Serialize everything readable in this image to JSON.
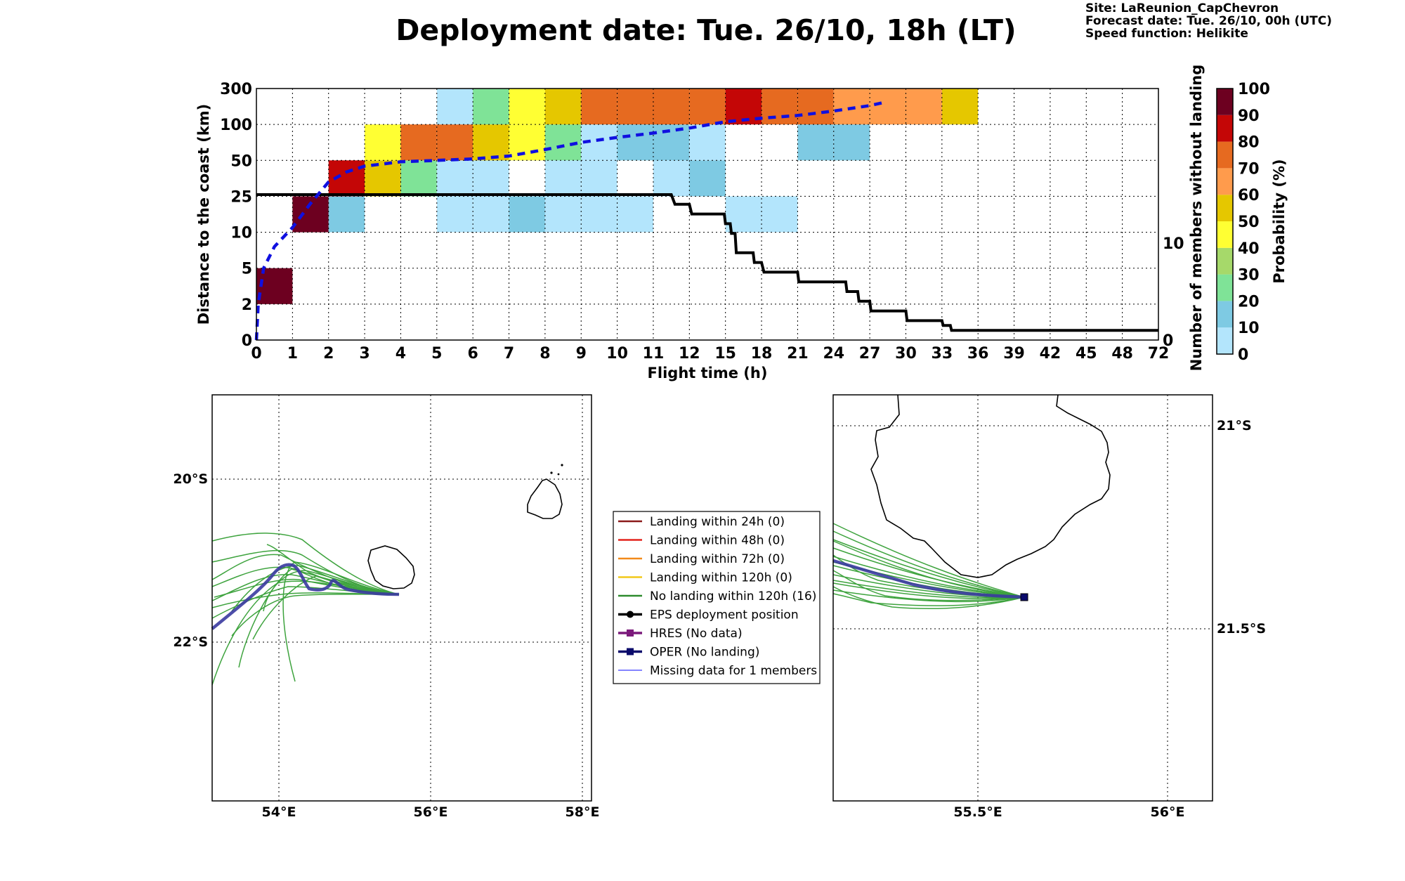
{
  "header": {
    "title": "Deployment date: Tue. 26/10, 18h (LT)",
    "site": "Site: LaReunion_CapChevron",
    "forecast": "Forecast date: Tue. 26/10, 00h (UTC)",
    "speed": "Speed function: Helikite"
  },
  "chart_data": [
    {
      "type": "heatmap",
      "xlabel": "Flight time (h)",
      "ylabel": "Distance to the coast (km)",
      "y2label": "Number of members without landing",
      "x_ticks": [
        "0",
        "1",
        "2",
        "3",
        "4",
        "5",
        "6",
        "7",
        "8",
        "9",
        "10",
        "11",
        "12",
        "15",
        "18",
        "21",
        "24",
        "27",
        "30",
        "33",
        "36",
        "39",
        "42",
        "45",
        "48",
        "72"
      ],
      "y_ticks": [
        "0",
        "2",
        "5",
        "10",
        "25",
        "50",
        "100",
        "300"
      ],
      "y2_ticks": [
        "0",
        "10"
      ],
      "colorbar": {
        "label": "Probability (%)",
        "ticks": [
          "0",
          "10",
          "20",
          "30",
          "40",
          "50",
          "60",
          "70",
          "80",
          "90",
          "100"
        ],
        "colors": [
          "#b3e5fc",
          "#7ecae3",
          "#7fe397",
          "#a6d96a",
          "#ffff33",
          "#e5c700",
          "#ff9b4c",
          "#e66a20",
          "#c40606",
          "#6d0020"
        ]
      },
      "cells": [
        {
          "x": 0,
          "y": 1,
          "v": 100
        },
        {
          "x": 1,
          "y": 3,
          "v": 100
        },
        {
          "x": 2,
          "y": 3,
          "v": 15
        },
        {
          "x": 2,
          "y": 4,
          "v": 85
        },
        {
          "x": 3,
          "y": 4,
          "v": 55
        },
        {
          "x": 3,
          "y": 5,
          "v": 45
        },
        {
          "x": 4,
          "y": 4,
          "v": 25
        },
        {
          "x": 4,
          "y": 5,
          "v": 75
        },
        {
          "x": 5,
          "y": 3,
          "v": 5
        },
        {
          "x": 5,
          "y": 4,
          "v": 5
        },
        {
          "x": 5,
          "y": 5,
          "v": 75
        },
        {
          "x": 5,
          "y": 6,
          "v": 5
        },
        {
          "x": 6,
          "y": 3,
          "v": 5
        },
        {
          "x": 6,
          "y": 4,
          "v": 5
        },
        {
          "x": 6,
          "y": 5,
          "v": 55
        },
        {
          "x": 6,
          "y": 6,
          "v": 25
        },
        {
          "x": 7,
          "y": 3,
          "v": 15
        },
        {
          "x": 7,
          "y": 5,
          "v": 45
        },
        {
          "x": 7,
          "y": 6,
          "v": 45
        },
        {
          "x": 8,
          "y": 3,
          "v": 5
        },
        {
          "x": 8,
          "y": 4,
          "v": 5
        },
        {
          "x": 8,
          "y": 5,
          "v": 25
        },
        {
          "x": 8,
          "y": 6,
          "v": 55
        },
        {
          "x": 9,
          "y": 3,
          "v": 5
        },
        {
          "x": 9,
          "y": 4,
          "v": 5
        },
        {
          "x": 9,
          "y": 5,
          "v": 5
        },
        {
          "x": 9,
          "y": 6,
          "v": 75
        },
        {
          "x": 10,
          "y": 3,
          "v": 5
        },
        {
          "x": 10,
          "y": 5,
          "v": 15
        },
        {
          "x": 10,
          "y": 6,
          "v": 75
        },
        {
          "x": 11,
          "y": 4,
          "v": 5
        },
        {
          "x": 11,
          "y": 5,
          "v": 15
        },
        {
          "x": 11,
          "y": 6,
          "v": 75
        },
        {
          "x": 12,
          "y": 4,
          "v": 15
        },
        {
          "x": 12,
          "y": 5,
          "v": 5
        },
        {
          "x": 12,
          "y": 6,
          "v": 75
        },
        {
          "x": 13,
          "y": 3,
          "v": 5
        },
        {
          "x": 13,
          "y": 6,
          "v": 85
        },
        {
          "x": 14,
          "y": 3,
          "v": 5
        },
        {
          "x": 14,
          "y": 6,
          "v": 75
        },
        {
          "x": 15,
          "y": 5,
          "v": 15
        },
        {
          "x": 15,
          "y": 6,
          "v": 75
        },
        {
          "x": 16,
          "y": 5,
          "v": 15
        },
        {
          "x": 16,
          "y": 6,
          "v": 65
        },
        {
          "x": 17,
          "y": 6,
          "v": 65
        },
        {
          "x": 18,
          "y": 6,
          "v": 65
        },
        {
          "x": 19,
          "y": 6,
          "v": 55
        }
      ],
      "members_without_landing": [
        {
          "t": 0,
          "n": 15
        },
        {
          "t": 11.5,
          "n": 15
        },
        {
          "t": 11.6,
          "n": 14
        },
        {
          "t": 12,
          "n": 14
        },
        {
          "t": 12.2,
          "n": 13
        },
        {
          "t": 14.9,
          "n": 13
        },
        {
          "t": 15,
          "n": 12
        },
        {
          "t": 15.4,
          "n": 12
        },
        {
          "t": 15.5,
          "n": 11
        },
        {
          "t": 15.8,
          "n": 11
        },
        {
          "t": 15.9,
          "n": 9
        },
        {
          "t": 17.3,
          "n": 9
        },
        {
          "t": 17.4,
          "n": 8
        },
        {
          "t": 18,
          "n": 8
        },
        {
          "t": 18.2,
          "n": 7
        },
        {
          "t": 21,
          "n": 7
        },
        {
          "t": 21.1,
          "n": 6
        },
        {
          "t": 25,
          "n": 6
        },
        {
          "t": 25.1,
          "n": 5
        },
        {
          "t": 26,
          "n": 5
        },
        {
          "t": 26.1,
          "n": 4
        },
        {
          "t": 27,
          "n": 4
        },
        {
          "t": 27.1,
          "n": 3
        },
        {
          "t": 30,
          "n": 3
        },
        {
          "t": 30.1,
          "n": 2
        },
        {
          "t": 33,
          "n": 2
        },
        {
          "t": 33.1,
          "n": 1.5
        },
        {
          "t": 33.7,
          "n": 1.5
        },
        {
          "t": 33.8,
          "n": 1
        },
        {
          "t": 72,
          "n": 1
        }
      ],
      "median_distance_km": [
        {
          "t": 0,
          "d": 0
        },
        {
          "t": 0.05,
          "d": 2
        },
        {
          "t": 0.2,
          "d": 5
        },
        {
          "t": 0.5,
          "d": 8
        },
        {
          "t": 1,
          "d": 12
        },
        {
          "t": 1.5,
          "d": 22
        },
        {
          "t": 2,
          "d": 35
        },
        {
          "t": 2.5,
          "d": 42
        },
        {
          "t": 3,
          "d": 46
        },
        {
          "t": 4,
          "d": 49
        },
        {
          "t": 5,
          "d": 50
        },
        {
          "t": 6,
          "d": 52
        },
        {
          "t": 7,
          "d": 56
        },
        {
          "t": 8,
          "d": 65
        },
        {
          "t": 9,
          "d": 75
        },
        {
          "t": 10,
          "d": 82
        },
        {
          "t": 11,
          "d": 88
        },
        {
          "t": 12,
          "d": 95
        },
        {
          "t": 15,
          "d": 115
        },
        {
          "t": 18,
          "d": 135
        },
        {
          "t": 21,
          "d": 150
        },
        {
          "t": 24,
          "d": 175
        },
        {
          "t": 27,
          "d": 205
        },
        {
          "t": 28,
          "d": 220
        }
      ]
    },
    {
      "type": "map",
      "name": "regional",
      "lon_ticks": [
        "54°E",
        "56°E",
        "58°E"
      ],
      "lat_ticks": [
        "20°S",
        "22°S"
      ]
    },
    {
      "type": "map",
      "name": "zoom",
      "lon_ticks": [
        "55.5°E",
        "56°E"
      ],
      "lat_ticks": [
        "21°S",
        "21.5°S"
      ]
    }
  ],
  "legend": [
    {
      "label": "Landing within 24h (0)",
      "color": "#8b1a1a",
      "style": "line"
    },
    {
      "label": "Landing within 48h (0)",
      "color": "#e3221c",
      "style": "line"
    },
    {
      "label": "Landing within 72h (0)",
      "color": "#f28a1a",
      "style": "line"
    },
    {
      "label": "Landing within 120h (0)",
      "color": "#f2c81a",
      "style": "line"
    },
    {
      "label": "No landing within 120h (16)",
      "color": "#2e8b2e",
      "style": "line"
    },
    {
      "label": "EPS deployment position",
      "color": "#000000",
      "style": "dot"
    },
    {
      "label": "HRES (No data)",
      "color": "#7b1a7b",
      "style": "square"
    },
    {
      "label": "OPER (No landing)",
      "color": "#0a0a6b",
      "style": "square"
    },
    {
      "label": "Missing data for 1 members",
      "color": "#5b5bff",
      "style": "thin"
    }
  ]
}
